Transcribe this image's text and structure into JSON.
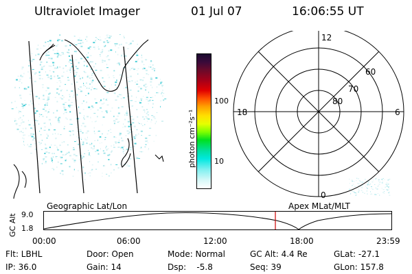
{
  "header": {
    "title": "Ultraviolet Imager",
    "date": "01 Jul 07",
    "time": "16:06:55 UT"
  },
  "colorbar": {
    "unit_label": "photon cm⁻²s⁻¹",
    "ticks": [
      "100",
      "10"
    ]
  },
  "polar": {
    "mlt_labels": [
      "12",
      "18",
      "6",
      "0"
    ],
    "lat_labels": [
      "60",
      "70",
      "80"
    ]
  },
  "panels": {
    "left_caption": "Geographic Lat/Lon",
    "right_caption": "Apex MLat/MLT"
  },
  "orbit": {
    "ylabel": "GC Alt",
    "ytick_top": "9.0",
    "ytick_bottom": "1.8",
    "xticks": [
      "00:00",
      "06:00",
      "12:00",
      "18:00",
      "23:59"
    ],
    "marker_color": "#cc0000"
  },
  "footer": {
    "row1": [
      "Flt: LBHL",
      "Door: Open",
      "Mode: Normal",
      "GC Alt: 4.4 Re",
      "GLat: -27.1"
    ],
    "row2": [
      "IP: 36.0",
      "Gain: 14",
      "Dsp:    -5.8",
      "Seq: 39",
      "GLon: 157.8"
    ]
  }
}
